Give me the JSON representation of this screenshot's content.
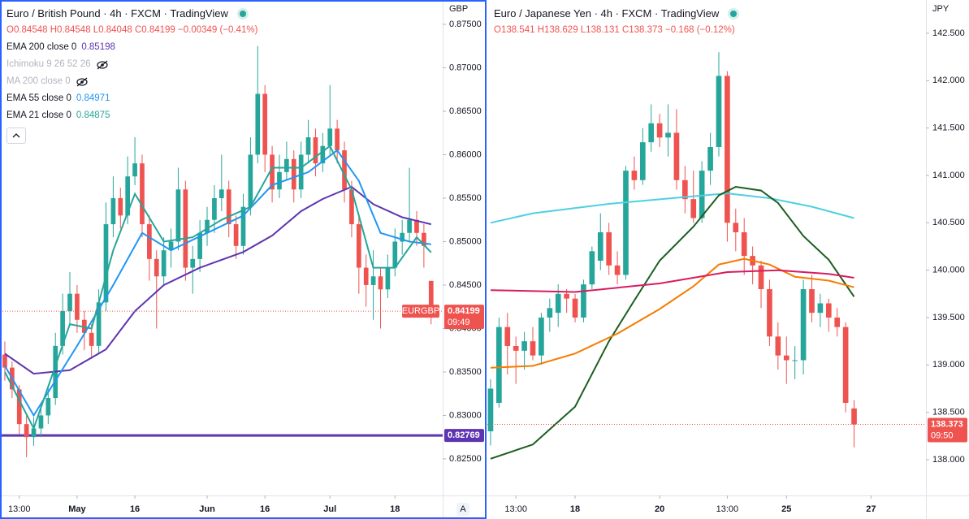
{
  "chart_data": [
    {
      "type": "candlestick",
      "title": "Euro / British Pound · 4h · FXCM · TradingView",
      "ohlc": "O0.84548 H0.84548 L0.84048 C0.84199 −0.00349 (−0.41%)",
      "currency": "GBP",
      "ylim": [
        0.82079,
        0.8778
      ],
      "yticks": [
        {
          "value": 0.875,
          "label": "0.87500"
        },
        {
          "value": 0.87,
          "label": "0.87000"
        },
        {
          "value": 0.865,
          "label": "0.86500"
        },
        {
          "value": 0.86,
          "label": "0.86000"
        },
        {
          "value": 0.855,
          "label": "0.85500"
        },
        {
          "value": 0.85,
          "label": "0.85000"
        },
        {
          "value": 0.845,
          "label": "0.84500"
        },
        {
          "value": 0.84,
          "label": "0.84000"
        },
        {
          "value": 0.835,
          "label": "0.83500"
        },
        {
          "value": 0.83,
          "label": "0.83000"
        },
        {
          "value": 0.825,
          "label": "0.82500"
        }
      ],
      "xlim": [
        -0.67,
        60.6
      ],
      "xticks": [
        {
          "value": 2,
          "label": "13:00"
        },
        {
          "value": 10,
          "label": "May"
        },
        {
          "value": 18,
          "label": "16"
        },
        {
          "value": 28,
          "label": "Jun"
        },
        {
          "value": 36,
          "label": "16"
        },
        {
          "value": 45,
          "label": "Jul"
        },
        {
          "value": 54,
          "label": "18"
        }
      ],
      "up_color": "#26a69a",
      "down_color": "#ef5350",
      "candles": [
        [
          0.837,
          0.8385,
          0.834,
          0.8355
        ],
        [
          0.8355,
          0.8362,
          0.832,
          0.833
        ],
        [
          0.833,
          0.8335,
          0.8278,
          0.829
        ],
        [
          0.829,
          0.83,
          0.8252,
          0.8275
        ],
        [
          0.8275,
          0.8298,
          0.8265,
          0.8285
        ],
        [
          0.8285,
          0.831,
          0.8275,
          0.83
        ],
        [
          0.83,
          0.8332,
          0.829,
          0.832
        ],
        [
          0.832,
          0.8395,
          0.8312,
          0.838
        ],
        [
          0.838,
          0.844,
          0.837,
          0.842
        ],
        [
          0.842,
          0.8465,
          0.8405,
          0.844
        ],
        [
          0.844,
          0.845,
          0.8395,
          0.841
        ],
        [
          0.841,
          0.842,
          0.8375,
          0.8395
        ],
        [
          0.8395,
          0.8405,
          0.8365,
          0.838
        ],
        [
          0.838,
          0.8445,
          0.8372,
          0.843
        ],
        [
          0.843,
          0.8545,
          0.842,
          0.852
        ],
        [
          0.852,
          0.8575,
          0.8505,
          0.855
        ],
        [
          0.855,
          0.8562,
          0.8515,
          0.853
        ],
        [
          0.853,
          0.8598,
          0.852,
          0.8575
        ],
        [
          0.8575,
          0.862,
          0.8565,
          0.859
        ],
        [
          0.859,
          0.86,
          0.8505,
          0.852
        ],
        [
          0.852,
          0.853,
          0.8455,
          0.848
        ],
        [
          0.848,
          0.849,
          0.84,
          0.846
        ],
        [
          0.846,
          0.8505,
          0.845,
          0.849
        ],
        [
          0.849,
          0.8515,
          0.847,
          0.85
        ],
        [
          0.85,
          0.8585,
          0.849,
          0.856
        ],
        [
          0.856,
          0.857,
          0.8455,
          0.847
        ],
        [
          0.847,
          0.8495,
          0.844,
          0.848
        ],
        [
          0.848,
          0.8525,
          0.8465,
          0.851
        ],
        [
          0.851,
          0.854,
          0.8495,
          0.8525
        ],
        [
          0.8525,
          0.8565,
          0.851,
          0.855
        ],
        [
          0.855,
          0.86,
          0.8535,
          0.856
        ],
        [
          0.856,
          0.857,
          0.8505,
          0.852
        ],
        [
          0.852,
          0.853,
          0.848,
          0.8495
        ],
        [
          0.8495,
          0.8555,
          0.8485,
          0.854
        ],
        [
          0.854,
          0.862,
          0.853,
          0.86
        ],
        [
          0.86,
          0.8725,
          0.859,
          0.867
        ],
        [
          0.867,
          0.868,
          0.858,
          0.86
        ],
        [
          0.86,
          0.861,
          0.8545,
          0.856
        ],
        [
          0.856,
          0.86,
          0.855,
          0.858
        ],
        [
          0.858,
          0.8615,
          0.857,
          0.8595
        ],
        [
          0.8595,
          0.8605,
          0.8545,
          0.856
        ],
        [
          0.856,
          0.8615,
          0.855,
          0.86
        ],
        [
          0.86,
          0.864,
          0.859,
          0.862
        ],
        [
          0.862,
          0.863,
          0.8575,
          0.859
        ],
        [
          0.859,
          0.8625,
          0.858,
          0.861
        ],
        [
          0.861,
          0.868,
          0.86,
          0.863
        ],
        [
          0.863,
          0.864,
          0.859,
          0.8605
        ],
        [
          0.8605,
          0.8615,
          0.8545,
          0.856
        ],
        [
          0.856,
          0.857,
          0.8505,
          0.852
        ],
        [
          0.852,
          0.853,
          0.844,
          0.847
        ],
        [
          0.847,
          0.8485,
          0.8425,
          0.845
        ],
        [
          0.845,
          0.849,
          0.841,
          0.846
        ],
        [
          0.846,
          0.847,
          0.84,
          0.8445
        ],
        [
          0.8445,
          0.8485,
          0.8435,
          0.847
        ],
        [
          0.847,
          0.8515,
          0.846,
          0.85
        ],
        [
          0.85,
          0.8525,
          0.8485,
          0.851
        ],
        [
          0.851,
          0.8585,
          0.85,
          0.8525
        ],
        [
          0.8525,
          0.8535,
          0.8495,
          0.851
        ],
        [
          0.851,
          0.852,
          0.847,
          0.8495
        ],
        [
          0.84548,
          0.84548,
          0.84048,
          0.84199
        ]
      ],
      "series": [
        {
          "name": "EMA 200 close 0",
          "value": 0.85198,
          "color": "#5e35b1",
          "x": [
            0,
            4,
            9,
            14,
            18,
            22,
            27,
            33,
            37,
            41,
            44,
            48,
            51,
            55,
            59
          ],
          "values": [
            0.8371,
            0.8348,
            0.8352,
            0.8376,
            0.842,
            0.845,
            0.847,
            0.8488,
            0.8507,
            0.8535,
            0.8549,
            0.8563,
            0.8543,
            0.8528,
            0.852
          ]
        },
        {
          "name": "Ichimoku 9 26 52 26",
          "visible": false
        },
        {
          "name": "MA 200 close 0",
          "visible": false
        },
        {
          "name": "EMA 55 close 0",
          "value": 0.84971,
          "color": "#2196f3",
          "x": [
            0,
            4,
            10,
            15,
            19,
            23,
            28,
            33,
            37,
            42,
            46,
            49,
            52,
            56,
            59
          ],
          "values": [
            0.8357,
            0.83,
            0.838,
            0.845,
            0.851,
            0.849,
            0.851,
            0.853,
            0.8565,
            0.858,
            0.8605,
            0.857,
            0.851,
            0.85,
            0.8497
          ]
        },
        {
          "name": "EMA 21 close 0",
          "value": 0.84875,
          "color": "#26a69a",
          "x": [
            0,
            4,
            9,
            12,
            15,
            18,
            22,
            26,
            30,
            34,
            37,
            41,
            45,
            48,
            51,
            54,
            57,
            59
          ],
          "values": [
            0.835,
            0.8285,
            0.8405,
            0.84,
            0.849,
            0.8555,
            0.85,
            0.8505,
            0.8525,
            0.854,
            0.8585,
            0.8585,
            0.861,
            0.856,
            0.847,
            0.847,
            0.8505,
            0.84875
          ]
        }
      ],
      "hlines": [
        {
          "value": 0.82769,
          "color": "#5e35b1"
        }
      ],
      "last": {
        "symbol": "EURGBP",
        "value": 0.84199,
        "countdown": "09:49"
      },
      "auto_button": "A"
    },
    {
      "type": "candlestick",
      "title": "Euro / Japanese Yen · 4h · FXCM · TradingView",
      "ohlc": "O138.541 H138.629 L138.131 C138.373 −0.168 (−0.12%)",
      "currency": "JPY",
      "ylim": [
        137.623,
        142.851
      ],
      "yticks": [
        {
          "value": 142.5,
          "label": "142.500"
        },
        {
          "value": 142,
          "label": "142.000"
        },
        {
          "value": 141.5,
          "label": "141.500"
        },
        {
          "value": 141,
          "label": "141.000"
        },
        {
          "value": 140.5,
          "label": "140.500"
        },
        {
          "value": 140,
          "label": "140.000"
        },
        {
          "value": 139.5,
          "label": "139.500"
        },
        {
          "value": 139,
          "label": "139.000"
        },
        {
          "value": 138.5,
          "label": "138.500"
        },
        {
          "value": 138,
          "label": "138.000"
        }
      ],
      "xlim": [
        -0.38,
        51.5
      ],
      "xticks": [
        {
          "value": 3,
          "label": "13:00"
        },
        {
          "value": 10,
          "label": "18"
        },
        {
          "value": 20,
          "label": "20"
        },
        {
          "value": 28,
          "label": "13:00"
        },
        {
          "value": 35,
          "label": "25"
        },
        {
          "value": 45,
          "label": "27"
        }
      ],
      "up_color": "#26a69a",
      "down_color": "#ef5350",
      "candles": [
        [
          138.3,
          138.85,
          138.15,
          138.75
        ],
        [
          138.6,
          139.5,
          138.55,
          139.4
        ],
        [
          139.4,
          139.55,
          138.9,
          139.2
        ],
        [
          139.2,
          139.3,
          138.8,
          139.15
        ],
        [
          139.15,
          139.35,
          138.95,
          139.25
        ],
        [
          139.25,
          139.4,
          139.05,
          139.1
        ],
        [
          139.1,
          139.55,
          139.0,
          139.5
        ],
        [
          139.5,
          139.7,
          139.35,
          139.6
        ],
        [
          139.55,
          139.85,
          139.4,
          139.75
        ],
        [
          139.75,
          139.8,
          139.55,
          139.7
        ],
        [
          139.7,
          139.75,
          139.45,
          139.5
        ],
        [
          139.5,
          139.9,
          139.45,
          139.85
        ],
        [
          139.85,
          140.25,
          139.8,
          140.2
        ],
        [
          140.1,
          140.6,
          140.0,
          140.4
        ],
        [
          140.4,
          140.5,
          139.95,
          140.05
        ],
        [
          140.05,
          140.2,
          139.85,
          139.95
        ],
        [
          139.95,
          141.1,
          139.9,
          141.05
        ],
        [
          141.05,
          141.2,
          140.85,
          140.95
        ],
        [
          140.95,
          141.5,
          140.9,
          141.35
        ],
        [
          141.35,
          141.75,
          141.25,
          141.55
        ],
        [
          141.55,
          141.65,
          141.3,
          141.4
        ],
        [
          141.4,
          141.75,
          141.2,
          141.45
        ],
        [
          141.45,
          141.7,
          140.85,
          140.95
        ],
        [
          140.95,
          141.1,
          140.6,
          140.75
        ],
        [
          140.75,
          141.05,
          140.5,
          140.55
        ],
        [
          140.55,
          141.15,
          140.5,
          141.05
        ],
        [
          141.05,
          141.45,
          140.9,
          141.3
        ],
        [
          141.3,
          142.3,
          141.2,
          142.05
        ],
        [
          142.05,
          142.1,
          140.3,
          140.5
        ],
        [
          140.5,
          140.65,
          140.2,
          140.4
        ],
        [
          140.4,
          140.55,
          139.95,
          140.15
        ],
        [
          140.15,
          140.25,
          139.85,
          140.05
        ],
        [
          140.05,
          140.1,
          139.6,
          139.8
        ],
        [
          139.8,
          139.9,
          139.2,
          139.3
        ],
        [
          139.3,
          139.45,
          138.95,
          139.1
        ],
        [
          139.1,
          139.3,
          138.8,
          139.05
        ],
        [
          139.05,
          139.2,
          138.85,
          139.05
        ],
        [
          139.05,
          139.9,
          138.9,
          139.8
        ],
        [
          139.8,
          139.95,
          139.45,
          139.55
        ],
        [
          139.55,
          139.75,
          139.4,
          139.65
        ],
        [
          139.65,
          139.7,
          139.35,
          139.5
        ],
        [
          139.5,
          139.6,
          139.3,
          139.4
        ],
        [
          139.4,
          139.45,
          138.5,
          138.6
        ],
        [
          138.541,
          138.629,
          138.131,
          138.373
        ]
      ],
      "series": [
        {
          "color": "#4dd0e1",
          "x": [
            0,
            5,
            14,
            24,
            28,
            33,
            38,
            43
          ],
          "values": [
            140.5,
            140.6,
            140.7,
            140.78,
            140.81,
            140.76,
            140.67,
            140.55
          ]
        },
        {
          "color": "#1b5e20",
          "x": [
            0,
            5,
            10,
            14,
            17,
            20,
            24,
            27,
            29,
            32,
            34,
            37,
            40,
            43
          ],
          "values": [
            138.01,
            138.16,
            138.56,
            139.25,
            139.68,
            140.1,
            140.46,
            140.79,
            140.88,
            140.84,
            140.71,
            140.36,
            140.11,
            139.72
          ]
        },
        {
          "color": "#f57c00",
          "x": [
            0,
            5,
            10,
            15,
            20,
            24,
            27,
            30,
            33,
            36,
            40,
            43
          ],
          "values": [
            138.97,
            138.99,
            139.12,
            139.33,
            139.59,
            139.83,
            140.06,
            140.12,
            140.06,
            139.93,
            139.89,
            139.82
          ]
        },
        {
          "color": "#d81b60",
          "x": [
            0,
            10,
            20,
            28,
            34,
            40,
            43
          ],
          "values": [
            139.79,
            139.77,
            139.86,
            139.98,
            140.0,
            139.96,
            139.92
          ]
        }
      ],
      "last": {
        "value": 138.373,
        "countdown": "09:50"
      }
    }
  ]
}
